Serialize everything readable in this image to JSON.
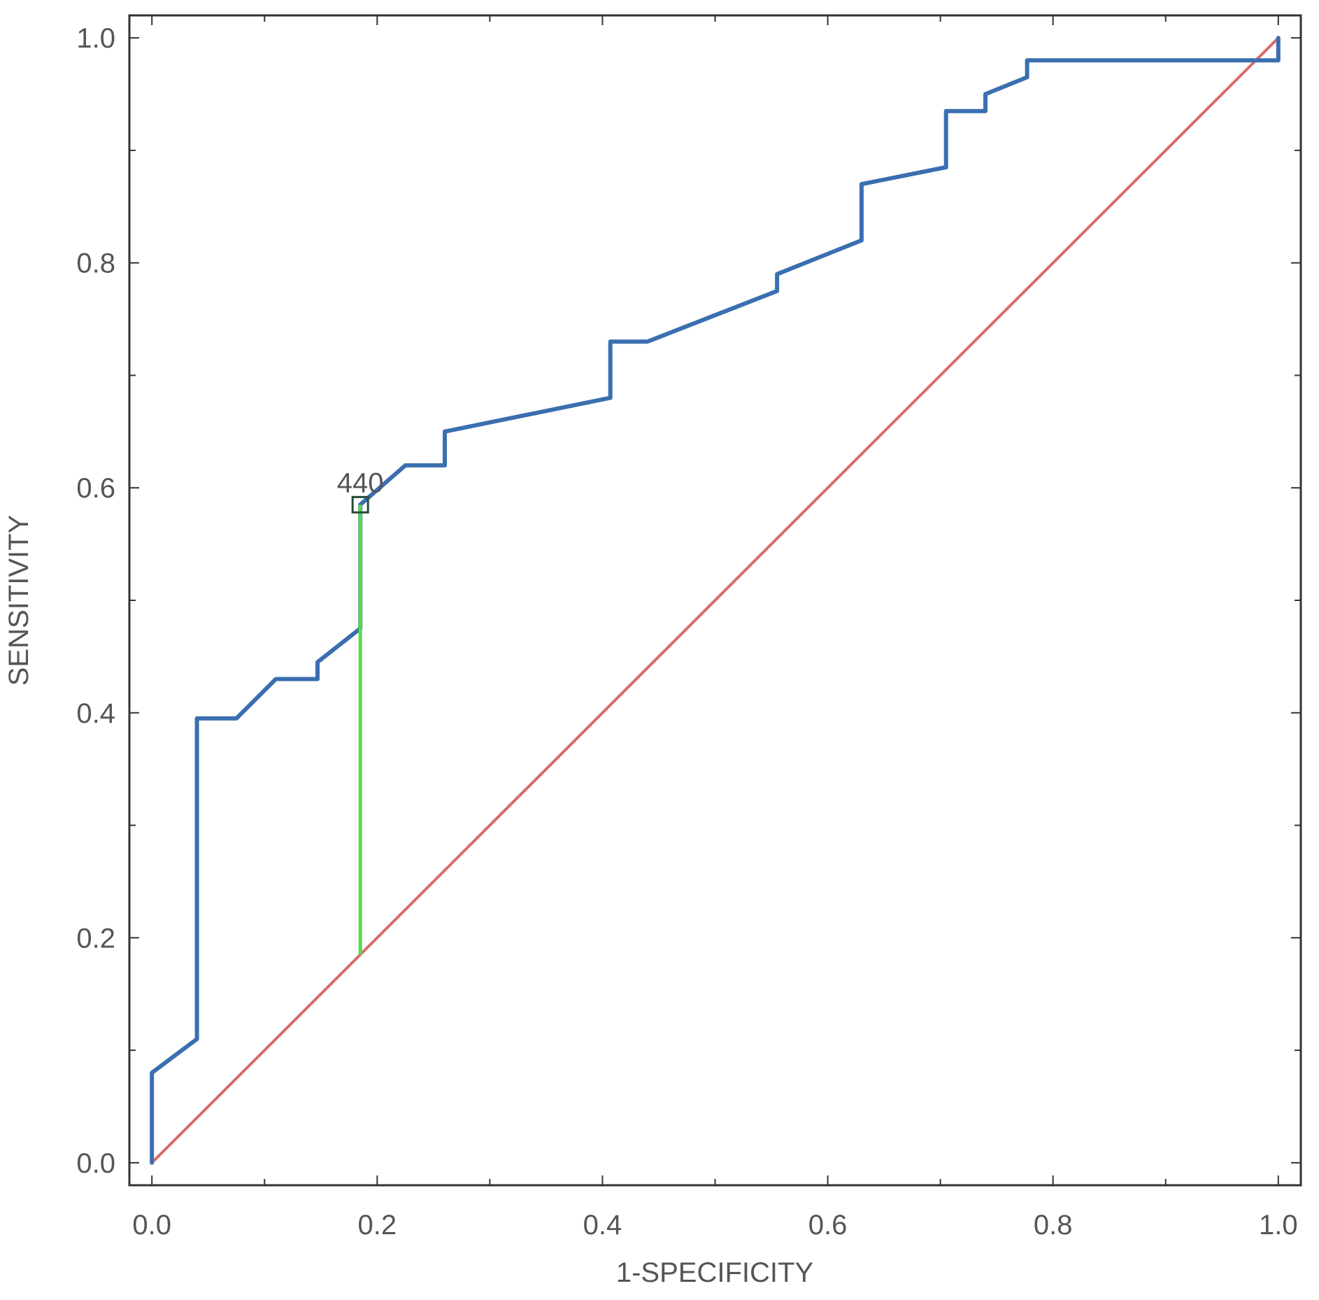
{
  "chart_data": {
    "type": "line",
    "xlabel": "1-SPECIFICITY",
    "ylabel": "SENSITIVITY",
    "xlim": [
      -0.02,
      1.02
    ],
    "ylim": [
      -0.02,
      1.02
    ],
    "x_ticks": [
      "0.0",
      "0.2",
      "0.4",
      "0.6",
      "0.8",
      "1.0"
    ],
    "y_ticks": [
      "0.0",
      "0.2",
      "0.4",
      "0.6",
      "0.8",
      "1.0"
    ],
    "minor_ticks": [
      0.1,
      0.3,
      0.5,
      0.7,
      0.9
    ],
    "grid": false,
    "series": [
      {
        "color": "#3a6fb0",
        "points": [
          [
            0.0,
            0.0
          ],
          [
            0.0,
            0.08
          ],
          [
            0.04,
            0.11
          ],
          [
            0.04,
            0.395
          ],
          [
            0.075,
            0.395
          ],
          [
            0.11,
            0.43
          ],
          [
            0.147,
            0.43
          ],
          [
            0.147,
            0.445
          ],
          [
            0.185,
            0.475
          ],
          [
            0.185,
            0.585
          ],
          [
            0.225,
            0.62
          ],
          [
            0.26,
            0.62
          ],
          [
            0.26,
            0.65
          ],
          [
            0.407,
            0.68
          ],
          [
            0.407,
            0.73
          ],
          [
            0.44,
            0.73
          ],
          [
            0.555,
            0.775
          ],
          [
            0.555,
            0.79
          ],
          [
            0.63,
            0.82
          ],
          [
            0.63,
            0.87
          ],
          [
            0.705,
            0.885
          ],
          [
            0.705,
            0.935
          ],
          [
            0.74,
            0.935
          ],
          [
            0.74,
            0.95
          ],
          [
            0.777,
            0.965
          ],
          [
            0.777,
            0.98
          ],
          [
            1.0,
            0.98
          ],
          [
            1.0,
            1.0
          ]
        ]
      },
      {
        "color": "#d96a6a",
        "points": [
          [
            0.0,
            0.0
          ],
          [
            1.0,
            1.0
          ]
        ]
      }
    ],
    "youden_line": {
      "x": 0.185,
      "y1": 0.185,
      "y2": 0.585,
      "color": "#5ad94a"
    },
    "cutoff_marker": {
      "x": 0.185,
      "y": 0.585,
      "label": "440"
    }
  }
}
